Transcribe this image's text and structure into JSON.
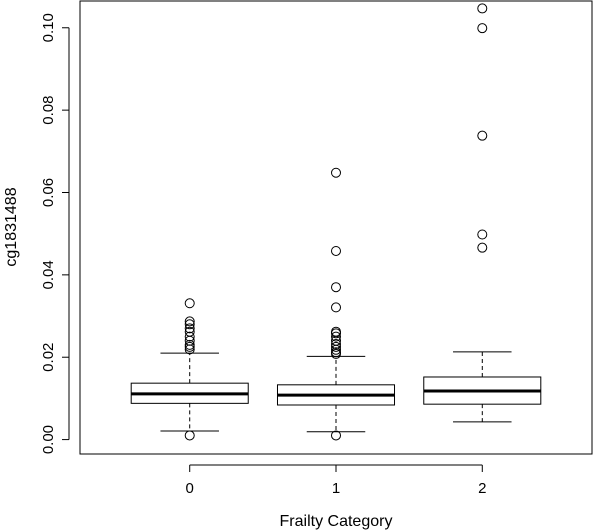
{
  "chart_data": {
    "type": "boxplot",
    "xlabel": "Frailty Category",
    "ylabel": "cg1831488",
    "ylim": [
      -0.0035,
      0.1065
    ],
    "yticks": [
      0.0,
      0.02,
      0.04,
      0.06,
      0.08,
      0.1
    ],
    "ytick_labels": [
      "0.00",
      "0.02",
      "0.04",
      "0.06",
      "0.08",
      "0.10"
    ],
    "grid": false,
    "categories": [
      "0",
      "1",
      "2"
    ],
    "boxes": [
      {
        "category": "0",
        "whisker_low": 0.0021,
        "q1": 0.0088,
        "median": 0.0111,
        "q3": 0.0137,
        "whisker_high": 0.021,
        "outliers": [
          0.001,
          0.0219,
          0.0225,
          0.023,
          0.024,
          0.025,
          0.0262,
          0.027,
          0.028,
          0.0287,
          0.0331
        ]
      },
      {
        "category": "1",
        "whisker_low": 0.0019,
        "q1": 0.0084,
        "median": 0.0108,
        "q3": 0.0133,
        "whisker_high": 0.0202,
        "outliers": [
          0.001,
          0.0208,
          0.0212,
          0.0218,
          0.0225,
          0.0232,
          0.024,
          0.025,
          0.0258,
          0.0262,
          0.0321,
          0.037,
          0.0458,
          0.0648
        ]
      },
      {
        "category": "2",
        "whisker_low": 0.0043,
        "q1": 0.0086,
        "median": 0.0118,
        "q3": 0.0152,
        "whisker_high": 0.0213,
        "outliers": [
          0.0466,
          0.0498,
          0.0738,
          0.0999,
          0.1047
        ]
      }
    ]
  }
}
